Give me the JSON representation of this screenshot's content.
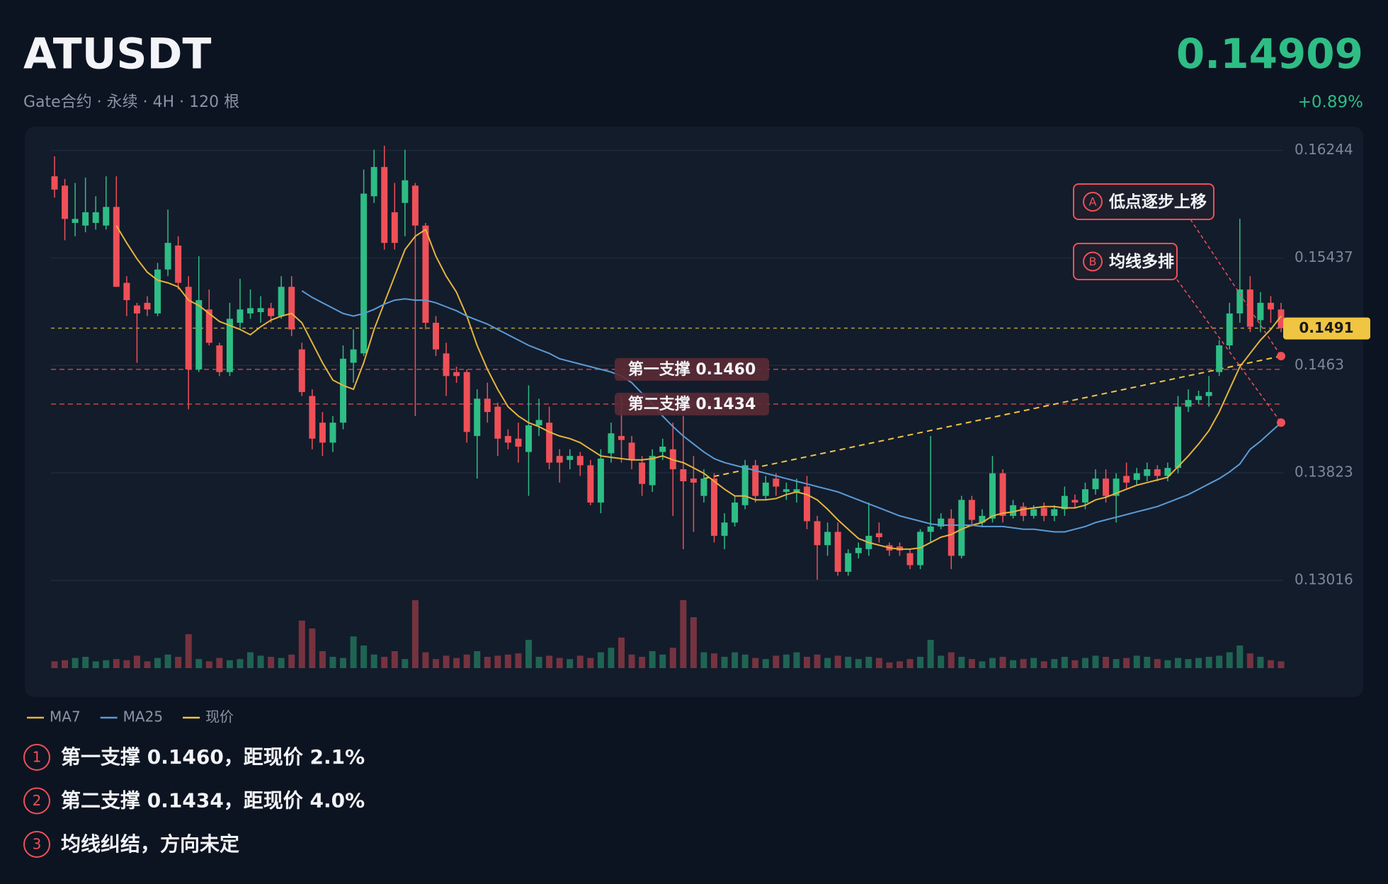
{
  "header": {
    "symbol": "ATUSDT",
    "subtitle": "Gate合约 · 永续 · 4H · 120 根",
    "price": "0.14909",
    "change": "+0.89%"
  },
  "chart_data": {
    "type": "candlestick",
    "ylim": [
      0.1292,
      0.1638
    ],
    "yticks": [
      0.16244,
      0.15437,
      0.1463,
      0.13823,
      0.13016
    ],
    "grid": true,
    "up_color": "#2ebd85",
    "down_color": "#ef5058",
    "candles": {
      "open": [
        0.1605,
        0.1598,
        0.157,
        0.1568,
        0.157,
        0.1568,
        0.1582,
        0.1525,
        0.1508,
        0.151,
        0.1502,
        0.1535,
        0.1553,
        0.1522,
        0.146,
        0.1505,
        0.1478,
        0.1458,
        0.1495,
        0.1502,
        0.1503,
        0.1506,
        0.15,
        0.1522,
        0.1475,
        0.144,
        0.142,
        0.1405,
        0.142,
        0.1465,
        0.1472,
        0.159,
        0.1612,
        0.1578,
        0.1585,
        0.1598,
        0.1568,
        0.1495,
        0.1472,
        0.1458,
        0.1458,
        0.141,
        0.1438,
        0.1432,
        0.141,
        0.1408,
        0.1398,
        0.1418,
        0.142,
        0.1395,
        0.1392,
        0.1395,
        0.1388,
        0.136,
        0.1397,
        0.141,
        0.1405,
        0.139,
        0.1373,
        0.1398,
        0.14,
        0.1385,
        0.1378,
        0.1365,
        0.1378,
        0.1335,
        0.1345,
        0.1358,
        0.1388,
        0.1365,
        0.1378,
        0.1368,
        0.1368,
        0.1372,
        0.1346,
        0.1328,
        0.1338,
        0.1308,
        0.1322,
        0.1325,
        0.1337,
        0.1328,
        0.1327,
        0.1322,
        0.1313,
        0.1338,
        0.1342,
        0.1348,
        0.132,
        0.1362,
        0.1345,
        0.1348,
        0.1382,
        0.135,
        0.1357,
        0.135,
        0.1356,
        0.135,
        0.1355,
        0.1362,
        0.136,
        0.137,
        0.1378,
        0.1365,
        0.138,
        0.1377,
        0.138,
        0.1385,
        0.138,
        0.1386,
        0.1432,
        0.1437,
        0.144,
        0.1458,
        0.1478,
        0.1502,
        0.152,
        0.1497,
        0.151,
        0.1505
      ],
      "high": [
        0.162,
        0.1603,
        0.16,
        0.1604,
        0.159,
        0.1605,
        0.1605,
        0.153,
        0.151,
        0.1515,
        0.154,
        0.158,
        0.156,
        0.153,
        0.1545,
        0.152,
        0.148,
        0.151,
        0.1528,
        0.152,
        0.1515,
        0.151,
        0.153,
        0.153,
        0.148,
        0.1445,
        0.1428,
        0.1425,
        0.1478,
        0.149,
        0.161,
        0.1625,
        0.1628,
        0.16,
        0.1625,
        0.16,
        0.157,
        0.15,
        0.148,
        0.1462,
        0.146,
        0.1445,
        0.145,
        0.1435,
        0.1415,
        0.142,
        0.1448,
        0.1438,
        0.1432,
        0.14,
        0.14,
        0.1398,
        0.1392,
        0.14,
        0.142,
        0.144,
        0.141,
        0.1395,
        0.14,
        0.1408,
        0.142,
        0.1425,
        0.1395,
        0.1385,
        0.1382,
        0.1352,
        0.1365,
        0.1392,
        0.1392,
        0.138,
        0.1382,
        0.1375,
        0.1378,
        0.138,
        0.135,
        0.1345,
        0.1345,
        0.1325,
        0.133,
        0.136,
        0.1345,
        0.133,
        0.133,
        0.1325,
        0.134,
        0.141,
        0.1352,
        0.1355,
        0.1365,
        0.1365,
        0.1355,
        0.1395,
        0.1385,
        0.1362,
        0.136,
        0.1358,
        0.136,
        0.1358,
        0.1372,
        0.1366,
        0.1375,
        0.1385,
        0.1385,
        0.1382,
        0.139,
        0.1386,
        0.139,
        0.1388,
        0.139,
        0.144,
        0.1445,
        0.1444,
        0.1455,
        0.1482,
        0.151,
        0.1573,
        0.153,
        0.1518,
        0.1515,
        0.151
      ],
      "low": [
        0.1589,
        0.1557,
        0.156,
        0.1563,
        0.1565,
        0.1565,
        0.1522,
        0.15,
        0.1465,
        0.15,
        0.15,
        0.153,
        0.152,
        0.143,
        0.1458,
        0.1478,
        0.1455,
        0.1455,
        0.149,
        0.1498,
        0.1495,
        0.1495,
        0.1498,
        0.1485,
        0.144,
        0.14,
        0.1395,
        0.1398,
        0.1415,
        0.145,
        0.147,
        0.1585,
        0.155,
        0.155,
        0.156,
        0.1425,
        0.149,
        0.147,
        0.144,
        0.145,
        0.1405,
        0.1378,
        0.142,
        0.1395,
        0.14,
        0.139,
        0.1365,
        0.141,
        0.1385,
        0.1375,
        0.1385,
        0.138,
        0.1358,
        0.1352,
        0.139,
        0.139,
        0.1385,
        0.1365,
        0.1368,
        0.1392,
        0.135,
        0.1325,
        0.1338,
        0.136,
        0.133,
        0.1325,
        0.1342,
        0.1355,
        0.136,
        0.1362,
        0.1365,
        0.1362,
        0.136,
        0.134,
        0.1302,
        0.132,
        0.1305,
        0.1305,
        0.1318,
        0.132,
        0.133,
        0.132,
        0.132,
        0.131,
        0.131,
        0.133,
        0.134,
        0.131,
        0.1318,
        0.1342,
        0.1342,
        0.1345,
        0.1345,
        0.1348,
        0.1346,
        0.1348,
        0.1346,
        0.1346,
        0.135,
        0.1356,
        0.1355,
        0.1366,
        0.136,
        0.1345,
        0.137,
        0.1373,
        0.1376,
        0.1376,
        0.1376,
        0.1382,
        0.1428,
        0.1434,
        0.1432,
        0.1455,
        0.1475,
        0.1495,
        0.1488,
        0.1488,
        0.1495,
        0.1488
      ],
      "close": [
        0.1595,
        0.1573,
        0.1573,
        0.1578,
        0.1578,
        0.1582,
        0.1522,
        0.1512,
        0.1502,
        0.1505,
        0.1535,
        0.1555,
        0.1525,
        0.146,
        0.1512,
        0.148,
        0.1458,
        0.1498,
        0.1505,
        0.1506,
        0.1506,
        0.15,
        0.1522,
        0.149,
        0.1443,
        0.1408,
        0.1405,
        0.142,
        0.1468,
        0.1475,
        0.1592,
        0.1612,
        0.1555,
        0.1555,
        0.1602,
        0.1568,
        0.1495,
        0.1475,
        0.1455,
        0.1455,
        0.1413,
        0.1438,
        0.1428,
        0.1408,
        0.1405,
        0.1402,
        0.1418,
        0.1422,
        0.139,
        0.139,
        0.1395,
        0.1388,
        0.136,
        0.1393,
        0.1412,
        0.1407,
        0.1392,
        0.1374,
        0.1395,
        0.1402,
        0.1385,
        0.1376,
        0.1375,
        0.1378,
        0.1335,
        0.1345,
        0.136,
        0.1388,
        0.1365,
        0.1375,
        0.1372,
        0.137,
        0.137,
        0.1346,
        0.1328,
        0.1338,
        0.1308,
        0.1322,
        0.1326,
        0.1335,
        0.1334,
        0.1324,
        0.1324,
        0.1313,
        0.1338,
        0.1342,
        0.1348,
        0.132,
        0.1362,
        0.1347,
        0.135,
        0.1382,
        0.135,
        0.1358,
        0.135,
        0.1355,
        0.135,
        0.1355,
        0.1365,
        0.136,
        0.137,
        0.1378,
        0.1365,
        0.1378,
        0.1375,
        0.1382,
        0.1385,
        0.138,
        0.1386,
        0.1432,
        0.1437,
        0.144,
        0.1443,
        0.1478,
        0.1502,
        0.152,
        0.1492,
        0.151,
        0.1505,
        0.1491
      ],
      "volume": [
        6,
        7,
        9,
        10,
        6,
        7,
        8,
        7,
        11,
        6,
        9,
        12,
        10,
        30,
        8,
        6,
        9,
        7,
        8,
        14,
        11,
        10,
        9,
        12,
        42,
        35,
        15,
        10,
        9,
        28,
        20,
        12,
        10,
        15,
        8,
        60,
        14,
        8,
        11,
        9,
        12,
        15,
        10,
        11,
        12,
        13,
        25,
        10,
        11,
        9,
        8,
        11,
        9,
        14,
        18,
        27,
        12,
        10,
        15,
        12,
        18,
        60,
        45,
        14,
        13,
        10,
        14,
        12,
        9,
        8,
        11,
        12,
        14,
        10,
        12,
        9,
        11,
        10,
        8,
        10,
        9,
        5,
        6,
        8,
        10,
        25,
        11,
        14,
        10,
        8,
        6,
        9,
        10,
        7,
        8,
        9,
        6,
        8,
        10,
        7,
        9,
        11,
        10,
        8,
        9,
        11,
        10,
        8,
        7,
        9,
        8,
        9,
        10,
        11,
        14,
        20,
        13,
        10,
        7,
        6
      ]
    },
    "series": [
      {
        "name": "MA7",
        "color": "#e5b43c",
        "values": [
          null,
          null,
          null,
          null,
          null,
          null,
          0.1568,
          0.1555,
          0.1543,
          0.1533,
          0.1527,
          0.1525,
          0.1522,
          0.1512,
          0.1508,
          0.1502,
          0.1496,
          0.1493,
          0.149,
          0.1486,
          0.1492,
          0.1497,
          0.15,
          0.1502,
          0.1495,
          0.148,
          0.1465,
          0.1452,
          0.1448,
          0.1445,
          0.1465,
          0.149,
          0.151,
          0.153,
          0.155,
          0.156,
          0.1565,
          0.1545,
          0.153,
          0.1518,
          0.15,
          0.1478,
          0.146,
          0.1445,
          0.1432,
          0.1425,
          0.142,
          0.1417,
          0.1413,
          0.141,
          0.1408,
          0.1405,
          0.14,
          0.1395,
          0.1394,
          0.1393,
          0.1392,
          0.1392,
          0.1393,
          0.1395,
          0.1392,
          0.139,
          0.1386,
          0.1382,
          0.1376,
          0.137,
          0.1365,
          0.1365,
          0.1362,
          0.1362,
          0.1363,
          0.1366,
          0.1368,
          0.1366,
          0.1362,
          0.1355,
          0.1347,
          0.134,
          0.1333,
          0.133,
          0.1328,
          0.1326,
          0.1325,
          0.1325,
          0.1326,
          0.133,
          0.1334,
          0.1336,
          0.134,
          0.1343,
          0.1345,
          0.135,
          0.1352,
          0.1353,
          0.1355,
          0.1356,
          0.1357,
          0.1357,
          0.1356,
          0.1356,
          0.1358,
          0.1362,
          0.1364,
          0.1367,
          0.137,
          0.1373,
          0.1375,
          0.1377,
          0.1379,
          0.1387,
          0.1395,
          0.1404,
          0.1414,
          0.1428,
          0.1445,
          0.1462,
          0.1472,
          0.1482,
          0.149,
          0.15
        ]
      },
      {
        "name": "MA25",
        "color": "#5b9bd5",
        "values": [
          null,
          null,
          null,
          null,
          null,
          null,
          null,
          null,
          null,
          null,
          null,
          null,
          null,
          null,
          null,
          null,
          null,
          null,
          null,
          null,
          null,
          null,
          null,
          null,
          0.1519,
          0.1514,
          0.151,
          0.1506,
          0.1502,
          0.15,
          0.1502,
          0.1505,
          0.1509,
          0.1512,
          0.1513,
          0.1512,
          0.1512,
          0.151,
          0.1507,
          0.1504,
          0.15,
          0.1497,
          0.1494,
          0.149,
          0.1486,
          0.1482,
          0.1478,
          0.1475,
          0.1472,
          0.1468,
          0.1466,
          0.1464,
          0.1462,
          0.146,
          0.1458,
          0.1455,
          0.145,
          0.1442,
          0.1434,
          0.1425,
          0.1417,
          0.141,
          0.1404,
          0.1398,
          0.1393,
          0.139,
          0.1388,
          0.1386,
          0.1384,
          0.1382,
          0.138,
          0.1378,
          0.1376,
          0.1374,
          0.1372,
          0.137,
          0.1368,
          0.1365,
          0.1362,
          0.1359,
          0.1356,
          0.1353,
          0.135,
          0.1348,
          0.1346,
          0.1344,
          0.1343,
          0.1343,
          0.1343,
          0.1343,
          0.1342,
          0.1342,
          0.1342,
          0.1341,
          0.134,
          0.134,
          0.1339,
          0.1338,
          0.1338,
          0.134,
          0.1342,
          0.1345,
          0.1347,
          0.1349,
          0.1351,
          0.1353,
          0.1355,
          0.1357,
          0.136,
          0.1363,
          0.1366,
          0.137,
          0.1374,
          0.1378,
          0.1383,
          0.1389,
          0.14,
          0.1406,
          0.1413,
          0.142
        ]
      }
    ],
    "current_price": {
      "name": "现价",
      "value": 0.1491,
      "color": "#f0c542"
    },
    "supports": [
      {
        "label": "第一支撑 0.1460",
        "value": 0.146
      },
      {
        "label": "第二支撑 0.1434",
        "value": 0.1434
      }
    ],
    "trendline": {
      "x": [
        63,
        119
      ],
      "values": [
        0.1378,
        0.147
      ]
    },
    "annotations": [
      {
        "badge": "A",
        "text": "低点逐步上移",
        "x": 119,
        "value": 0.147
      },
      {
        "badge": "B",
        "text": "均线多排",
        "x": 119,
        "value": 0.142
      }
    ]
  },
  "notes": [
    {
      "badge": "1",
      "text": "第一支撑 0.1460，距现价 2.1%"
    },
    {
      "badge": "2",
      "text": "第二支撑 0.1434，距现价 4.0%"
    },
    {
      "badge": "3",
      "text": "均线纠结，方向未定"
    }
  ]
}
